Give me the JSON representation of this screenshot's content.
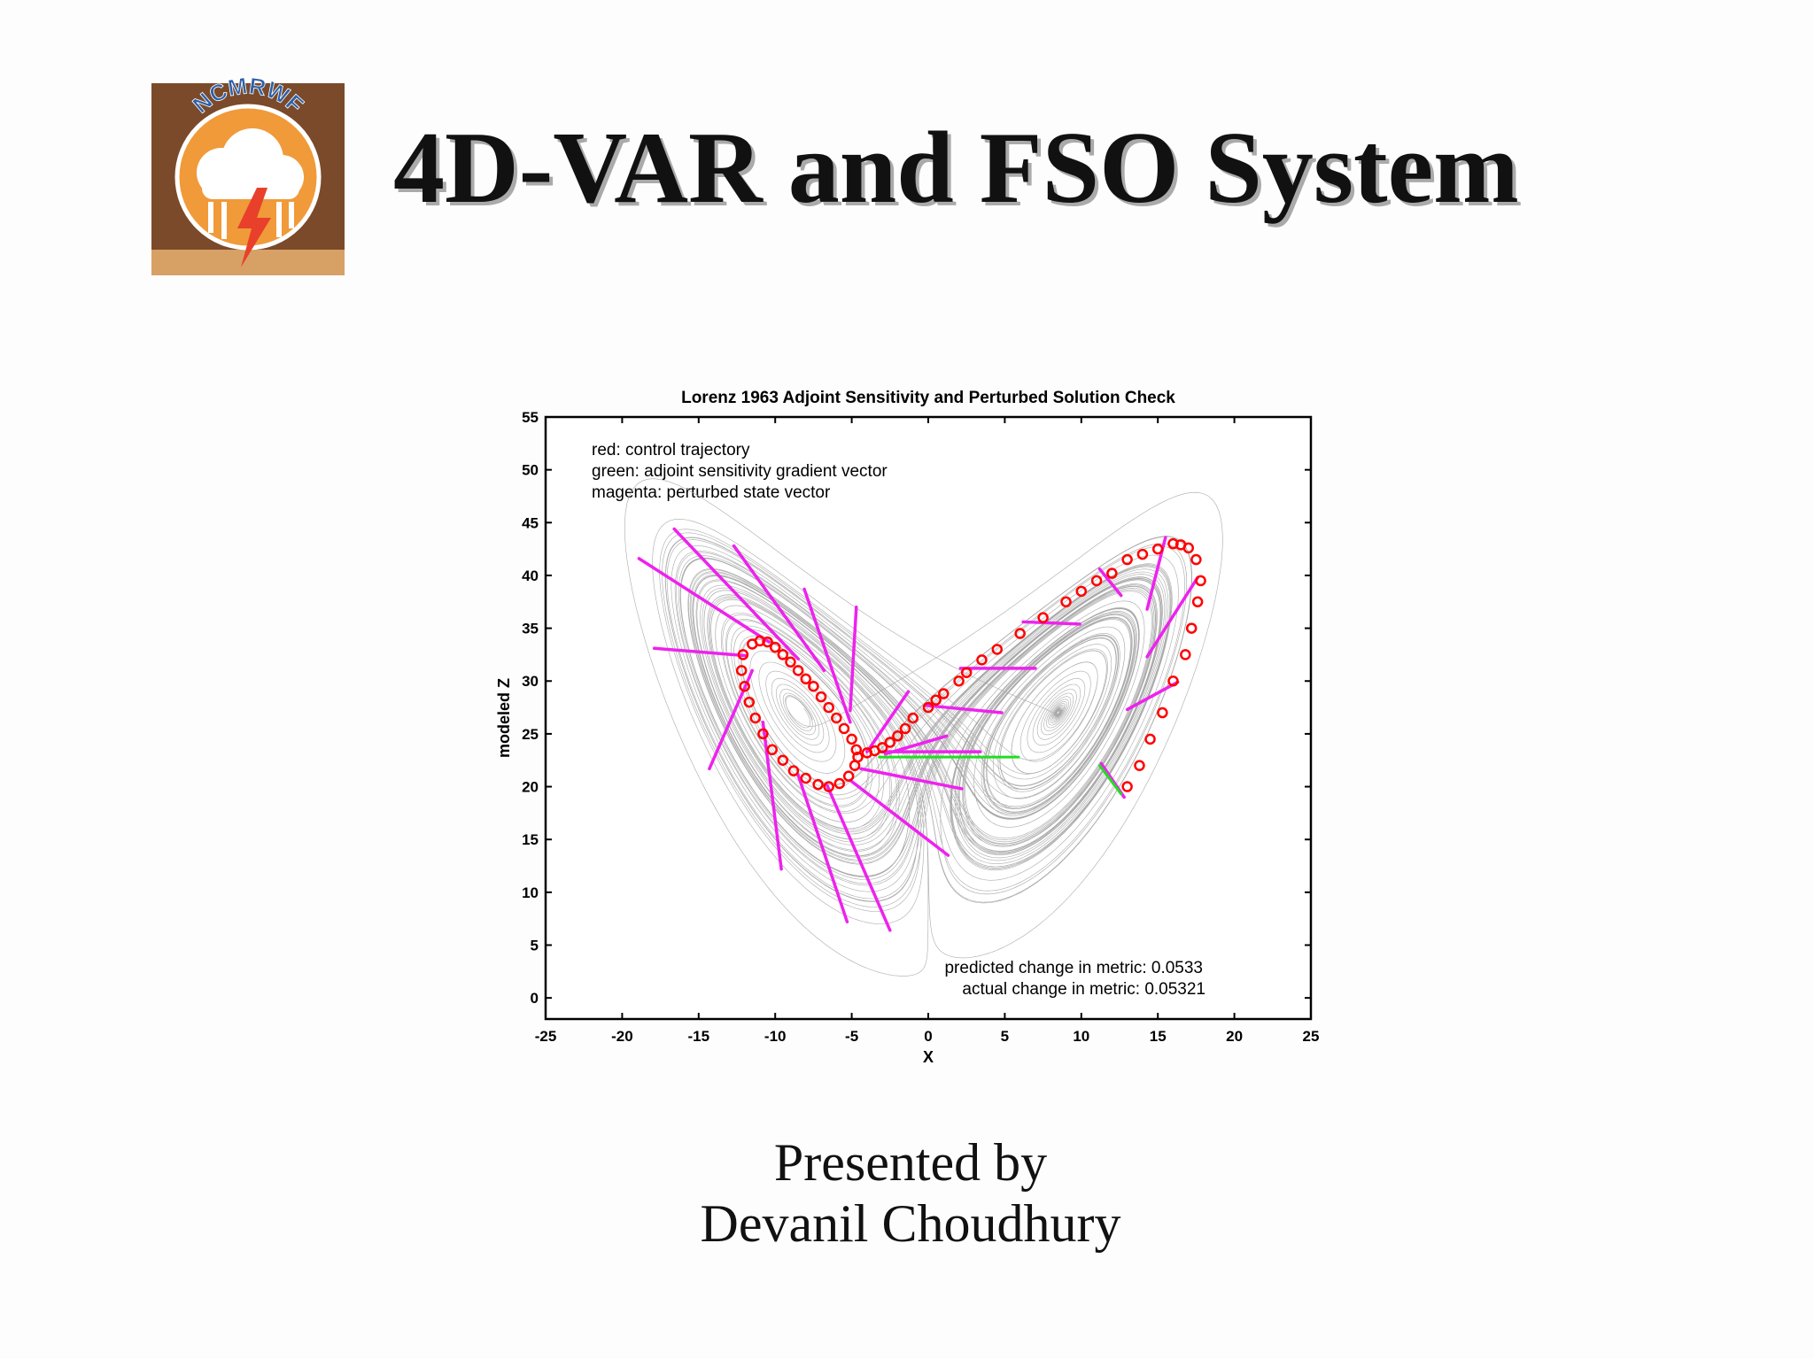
{
  "header": {
    "title": "4D-VAR and FSO System"
  },
  "logo": {
    "text": "NCMRWF"
  },
  "chart_data": {
    "type": "scatter",
    "title": "Lorenz 1963 Adjoint Sensitivity and Perturbed Solution Check",
    "xlabel": "X",
    "ylabel": "modeled Z",
    "xlim": [
      -25,
      25
    ],
    "ylim": [
      -2,
      55
    ],
    "xticks": [
      -25,
      -20,
      -15,
      -10,
      -5,
      0,
      5,
      10,
      15,
      20,
      25
    ],
    "yticks": [
      0,
      5,
      10,
      15,
      20,
      25,
      30,
      35,
      40,
      45,
      50,
      55
    ],
    "legend_notes": [
      "red: control trajectory",
      "green: adjoint sensitivity gradient vector",
      "magenta: perturbed state vector"
    ],
    "metric_notes": [
      "predicted change in metric: 0.0533",
      "actual change in metric: 0.05321"
    ],
    "trajectory": {
      "color": "#ff0000",
      "x": [
        -11.5,
        -11,
        -10.5,
        -10,
        -9.5,
        -9,
        -8.5,
        -8,
        -7.5,
        -7,
        -6.5,
        -6,
        -5.5,
        -5,
        -4.7,
        -4.6,
        -4.8,
        -5.2,
        -5.8,
        -6.5,
        -7.2,
        -8,
        -8.8,
        -9.5,
        -10.2,
        -10.8,
        -11.3,
        -11.7,
        -12,
        -12.2,
        -12.1,
        -4,
        -3.5,
        -3,
        -2.5,
        -2,
        -1.5,
        -1,
        0,
        0.5,
        1,
        2,
        2.5,
        3.5,
        4.5,
        6,
        7.5,
        9,
        10,
        11,
        12,
        13,
        14,
        15,
        16,
        16.5,
        17,
        17.5,
        17.8,
        17.6,
        17.2,
        16.8,
        16,
        15.3,
        14.5,
        13.8,
        13
      ],
      "y": [
        33.5,
        33.8,
        33.7,
        33.2,
        32.5,
        31.8,
        31,
        30.2,
        29.5,
        28.5,
        27.5,
        26.5,
        25.5,
        24.5,
        23.5,
        22.8,
        22,
        21,
        20.3,
        20,
        20.2,
        20.8,
        21.5,
        22.5,
        23.5,
        25,
        26.5,
        28,
        29.5,
        31,
        32.5,
        23.2,
        23.4,
        23.7,
        24.2,
        24.8,
        25.5,
        26.5,
        27.5,
        28.2,
        28.8,
        30,
        30.8,
        32,
        33,
        34.5,
        36,
        37.5,
        38.5,
        39.5,
        40.2,
        41.5,
        42,
        42.5,
        43,
        42.9,
        42.6,
        41.5,
        39.5,
        37.5,
        35,
        32.5,
        30,
        27,
        24.5,
        22,
        20
      ]
    },
    "perturbed_vectors": {
      "color": "#ee22ee",
      "segments": [
        {
          "x": [
            -18.9,
            -10.4
          ],
          "y": [
            41.6,
            33.7
          ]
        },
        {
          "x": [
            -16.6,
            -8.5
          ],
          "y": [
            44.4,
            32.1
          ]
        },
        {
          "x": [
            -12.7,
            -6.8
          ],
          "y": [
            42.8,
            31.0
          ]
        },
        {
          "x": [
            -8.1,
            -5.1
          ],
          "y": [
            38.7,
            26.1
          ]
        },
        {
          "x": [
            -4.7,
            -5.1
          ],
          "y": [
            37.0,
            27.2
          ]
        },
        {
          "x": [
            -17.9,
            -11.9
          ],
          "y": [
            33.1,
            32.4
          ]
        },
        {
          "x": [
            -14.3,
            -11.5
          ],
          "y": [
            21.7,
            31.0
          ]
        },
        {
          "x": [
            -9.6,
            -10.8
          ],
          "y": [
            12.2,
            26.1
          ]
        },
        {
          "x": [
            -5.3,
            -8.5
          ],
          "y": [
            7.2,
            21.1
          ]
        },
        {
          "x": [
            -2.5,
            -6.6
          ],
          "y": [
            6.4,
            20.1
          ]
        },
        {
          "x": [
            1.3,
            -5.1
          ],
          "y": [
            13.5,
            20.6
          ]
        },
        {
          "x": [
            2.2,
            -4.4
          ],
          "y": [
            19.8,
            21.7
          ]
        },
        {
          "x": [
            3.4,
            -3.2
          ],
          "y": [
            23.3,
            23.3
          ]
        },
        {
          "x": [
            1.2,
            -2.8
          ],
          "y": [
            24.8,
            23.1
          ]
        },
        {
          "x": [
            -1.3,
            -4.0
          ],
          "y": [
            29.0,
            23.3
          ]
        },
        {
          "x": [
            4.8,
            -0.2
          ],
          "y": [
            27.0,
            27.7
          ]
        },
        {
          "x": [
            7.0,
            2.1
          ],
          "y": [
            31.2,
            31.2
          ]
        },
        {
          "x": [
            9.9,
            6.2
          ],
          "y": [
            35.4,
            35.6
          ]
        },
        {
          "x": [
            12.6,
            11.2
          ],
          "y": [
            38.1,
            40.6
          ]
        },
        {
          "x": [
            14.3,
            15.5
          ],
          "y": [
            36.8,
            43.6
          ]
        },
        {
          "x": [
            14.3,
            17.6
          ],
          "y": [
            32.3,
            39.8
          ]
        },
        {
          "x": [
            13.0,
            16.3
          ],
          "y": [
            27.3,
            29.9
          ]
        },
        {
          "x": [
            11.3,
            12.8
          ],
          "y": [
            22.2,
            19.0
          ]
        }
      ]
    },
    "gradient_vectors": {
      "color": "#22dd22",
      "segments": [
        {
          "x": [
            -3.2,
            5.9
          ],
          "y": [
            22.8,
            22.8
          ]
        },
        {
          "x": [
            11.2,
            12.6
          ],
          "y": [
            22.0,
            19.3
          ]
        }
      ]
    }
  },
  "footer": {
    "lines": [
      "Presented by",
      "Devanil Choudhury"
    ]
  }
}
